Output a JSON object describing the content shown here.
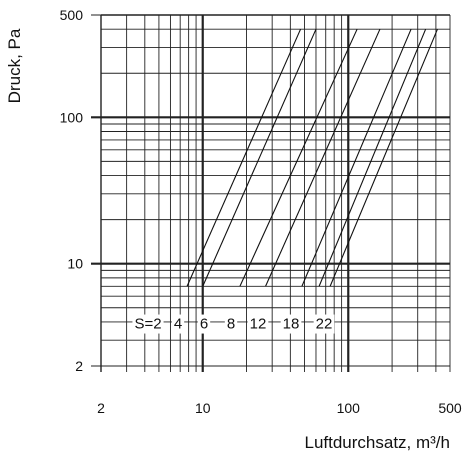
{
  "chart_data": {
    "type": "line",
    "title": "",
    "xlabel": "Luftdurchsatz, m³/h",
    "ylabel": "Druck, Pa",
    "x_scale": "log",
    "y_scale": "log",
    "xlim": [
      2,
      500
    ],
    "ylim": [
      2,
      500
    ],
    "x_ticks": [
      "2",
      "10",
      "100",
      "500"
    ],
    "y_ticks": [
      "2",
      "10",
      "100",
      "500"
    ],
    "grid": true,
    "curve_labels": [
      "S=2",
      "4",
      "6",
      "8",
      "12",
      "18",
      "22"
    ],
    "series": [
      {
        "name": "S=2",
        "x": [
          7.8,
          47
        ],
        "y": [
          7,
          400
        ]
      },
      {
        "name": "4",
        "x": [
          10,
          60
        ],
        "y": [
          7,
          400
        ]
      },
      {
        "name": "6",
        "x": [
          18,
          115
        ],
        "y": [
          7,
          400
        ]
      },
      {
        "name": "8",
        "x": [
          27,
          165
        ],
        "y": [
          7,
          400
        ]
      },
      {
        "name": "12",
        "x": [
          48,
          270
        ],
        "y": [
          7,
          400
        ]
      },
      {
        "name": "18",
        "x": [
          63,
          340
        ],
        "y": [
          7,
          400
        ]
      },
      {
        "name": "22",
        "x": [
          75,
          410
        ],
        "y": [
          7,
          400
        ]
      }
    ],
    "colors": {
      "line": "#111111",
      "grid": "#222222"
    }
  }
}
